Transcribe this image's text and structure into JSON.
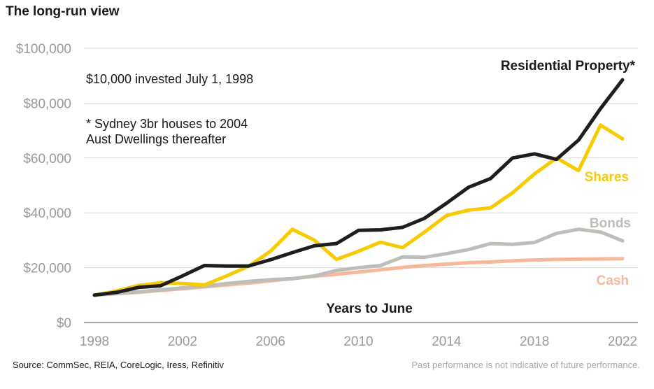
{
  "header": {
    "title": "The long-run view"
  },
  "footer": {
    "source": "Source: CommSec, REIA, CoreLogic, Iress, Refinitiv",
    "disclaimer": "Past performance is not indicative of future performance."
  },
  "chart_data": {
    "type": "line",
    "title": "The long-run view",
    "xlabel": "Years to June",
    "ylabel": "",
    "xlim": [
      1998,
      2022
    ],
    "ylim": [
      0,
      100000
    ],
    "x_ticks": [
      1998,
      2002,
      2006,
      2010,
      2014,
      2018,
      2022
    ],
    "y_ticks": [
      0,
      20000,
      40000,
      60000,
      80000,
      100000
    ],
    "y_tick_labels": [
      "$0",
      "$20,000",
      "$40,000",
      "$60,000",
      "$80,000",
      "$100,000"
    ],
    "grid": true,
    "legend": "inline labels",
    "annotations": [
      "$10,000 invested July 1, 1998",
      "* Sydney 3br houses to 2004",
      "Aust Dwellings thereafter"
    ],
    "x": [
      1998,
      1999,
      2000,
      2001,
      2002,
      2003,
      2004,
      2005,
      2006,
      2007,
      2008,
      2009,
      2010,
      2011,
      2012,
      2013,
      2014,
      2015,
      2016,
      2017,
      2018,
      2019,
      2020,
      2021,
      2022
    ],
    "series": [
      {
        "name": "Cash",
        "color": "#f5b99a",
        "values": [
          10000,
          10500,
          11000,
          11700,
          12300,
          13000,
          13700,
          14400,
          15200,
          16000,
          16900,
          17600,
          18400,
          19200,
          20100,
          20800,
          21300,
          21800,
          22100,
          22500,
          22800,
          23000,
          23100,
          23200,
          23300
        ]
      },
      {
        "name": "Bonds",
        "color": "#bebeb9",
        "values": [
          10000,
          10600,
          11200,
          11900,
          12600,
          13300,
          14200,
          15000,
          15600,
          16000,
          17000,
          19000,
          20000,
          20800,
          23900,
          23800,
          25100,
          26600,
          28800,
          28500,
          29200,
          32500,
          34000,
          33000,
          29800
        ]
      },
      {
        "name": "Shares",
        "color": "#f7cb00",
        "values": [
          10000,
          11500,
          13500,
          14500,
          14200,
          13700,
          17000,
          20500,
          26000,
          34000,
          30000,
          23000,
          26000,
          29300,
          27300,
          33000,
          39000,
          41000,
          41800,
          47300,
          54200,
          60000,
          55400,
          72000,
          67000
        ]
      },
      {
        "name": "Residential Property*",
        "color": "#1e1e1e",
        "values": [
          10000,
          11000,
          12800,
          13400,
          17000,
          20800,
          20600,
          20600,
          22900,
          25500,
          28000,
          28800,
          33600,
          33800,
          34700,
          38000,
          43500,
          49300,
          52500,
          60000,
          61500,
          59500,
          66500,
          78000,
          88500
        ]
      }
    ]
  }
}
